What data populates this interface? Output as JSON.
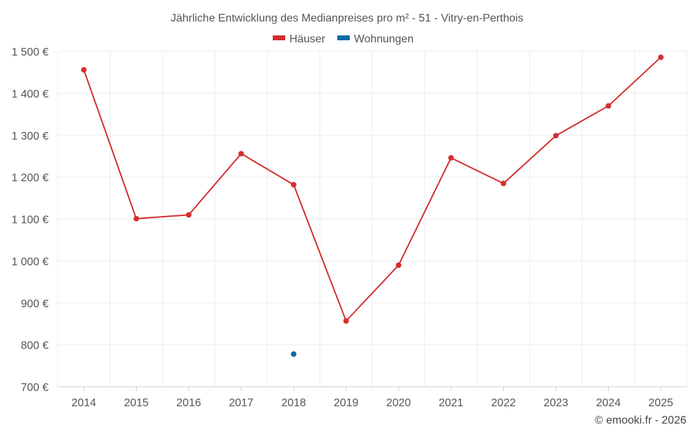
{
  "chart_data": {
    "type": "line",
    "title": "Jährliche Entwicklung des Medianpreises pro m² - 51 - Vitry-en-Perthois",
    "categories": [
      "2014",
      "2015",
      "2016",
      "2017",
      "2018",
      "2019",
      "2020",
      "2021",
      "2022",
      "2023",
      "2024",
      "2025"
    ],
    "series": [
      {
        "name": "Häuser",
        "color": "#d32f2f",
        "values": [
          1456,
          1101,
          1110,
          1256,
          1182,
          857,
          990,
          1246,
          1185,
          1299,
          1370,
          1486
        ]
      },
      {
        "name": "Wohnungen",
        "color": "#0e6aa6",
        "values": [
          null,
          null,
          null,
          null,
          778,
          null,
          null,
          null,
          null,
          null,
          null,
          null
        ]
      }
    ],
    "ylim": [
      700,
      1500
    ],
    "yticks": [
      700,
      800,
      900,
      1000,
      1100,
      1200,
      1300,
      1400,
      1500
    ],
    "ytick_labels": [
      "700 €",
      "800 €",
      "900 €",
      "1 000 €",
      "1 100 €",
      "1 200 €",
      "1 300 €",
      "1 400 €",
      "1 500 €"
    ],
    "grid": true,
    "legend_position": "top-center"
  },
  "credit": "© emooki.fr - 2026"
}
